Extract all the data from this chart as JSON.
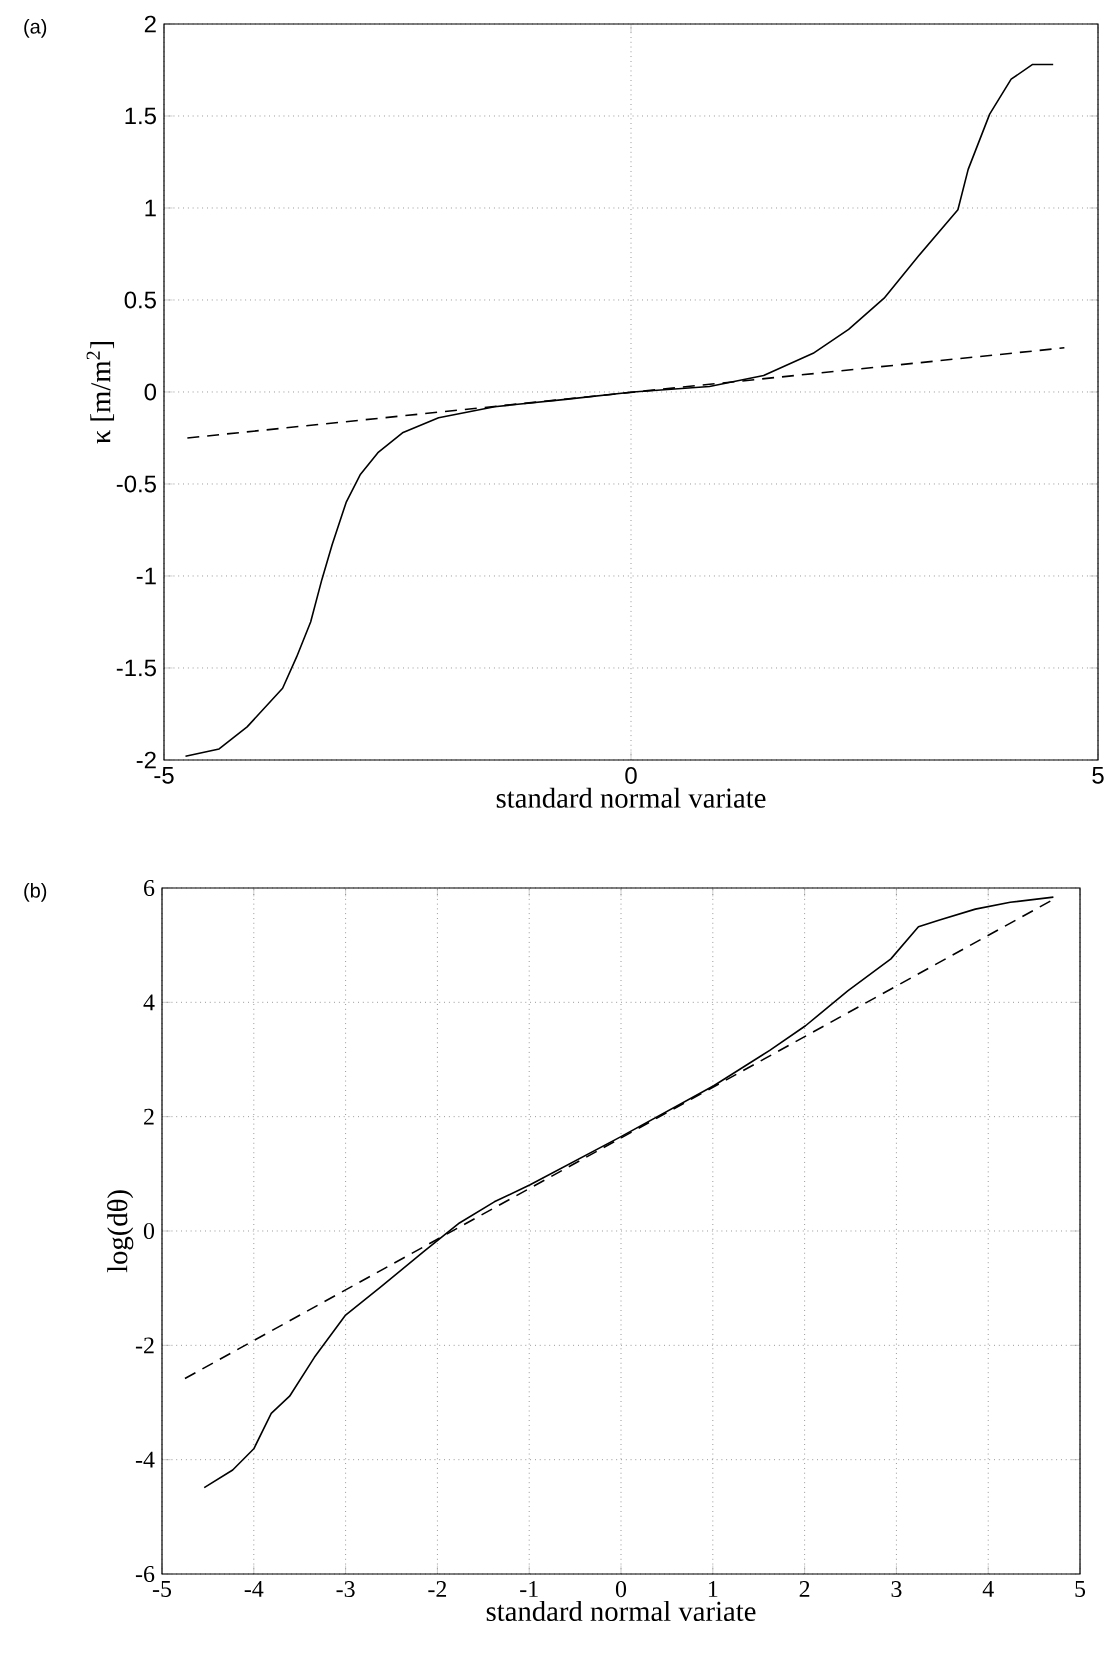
{
  "chart_data": [
    {
      "type": "line",
      "title": "(a)",
      "xlabel": "standard normal variate",
      "ylabel": "κ [m/m$^{2}$]",
      "xlim": [
        -5,
        5
      ],
      "ylim": [
        -2,
        2
      ],
      "xticks": [
        -5,
        0,
        5
      ],
      "yticks": [
        -2,
        -1.5,
        -1,
        -0.5,
        0,
        0.5,
        1,
        1.5,
        2
      ],
      "grid": true,
      "marker": "none",
      "series": [
        {
          "color": "#000000",
          "line_style": "solid",
          "x": [
            -4.77,
            -4.41,
            -4.11,
            -3.73,
            -3.58,
            -3.43,
            -3.31,
            -3.2,
            -3.05,
            -2.9,
            -2.71,
            -2.44,
            -2.06,
            -1.46,
            -0.7,
            0.02,
            0.84,
            1.42,
            1.95,
            2.33,
            2.71,
            3.08,
            3.5,
            3.61,
            3.84,
            4.07,
            4.3,
            4.52
          ],
          "values": [
            -1.98,
            -1.94,
            -1.82,
            -1.61,
            -1.44,
            -1.25,
            -1.02,
            -0.83,
            -0.6,
            -0.45,
            -0.33,
            -0.22,
            -0.14,
            -0.08,
            -0.04,
            0,
            0.03,
            0.09,
            0.21,
            0.34,
            0.51,
            0.74,
            0.99,
            1.21,
            1.51,
            1.7,
            1.78,
            1.78
          ]
        },
        {
          "color": "#000000",
          "line_style": "dashed",
          "x": [
            -4.75,
            4.64
          ],
          "values": [
            -0.25,
            0.24
          ]
        }
      ]
    },
    {
      "type": "line",
      "title": "(b)",
      "xlabel": "standard normal variate",
      "ylabel": "log(dθ)",
      "xlim": [
        -5,
        5
      ],
      "ylim": [
        -6,
        6
      ],
      "xticks": [
        -5,
        -4,
        -3,
        -2,
        -1,
        0,
        1,
        2,
        3,
        4,
        5
      ],
      "yticks": [
        -6,
        -4,
        -2,
        0,
        2,
        4,
        6
      ],
      "grid": true,
      "marker": "none",
      "series": [
        {
          "color": "#000000",
          "line_style": "solid",
          "x": [
            -4.54,
            -4.23,
            -4.0,
            -3.81,
            -3.61,
            -3.34,
            -3.0,
            -2.61,
            -2.15,
            -1.76,
            -1.38,
            -0.99,
            0,
            1.01,
            1.62,
            2.01,
            2.47,
            2.94,
            3.24,
            3.47,
            3.86,
            4.24,
            4.71
          ],
          "values": [
            -4.49,
            -4.18,
            -3.81,
            -3.19,
            -2.89,
            -2.21,
            -1.47,
            -0.97,
            -0.36,
            0.14,
            0.51,
            0.81,
            1.65,
            2.54,
            3.16,
            3.59,
            4.2,
            4.76,
            5.32,
            5.44,
            5.63,
            5.75,
            5.84
          ]
        },
        {
          "color": "#000000",
          "line_style": "dashed",
          "x": [
            -4.75,
            4.71
          ],
          "values": [
            -2.58,
            5.8
          ]
        }
      ]
    }
  ]
}
